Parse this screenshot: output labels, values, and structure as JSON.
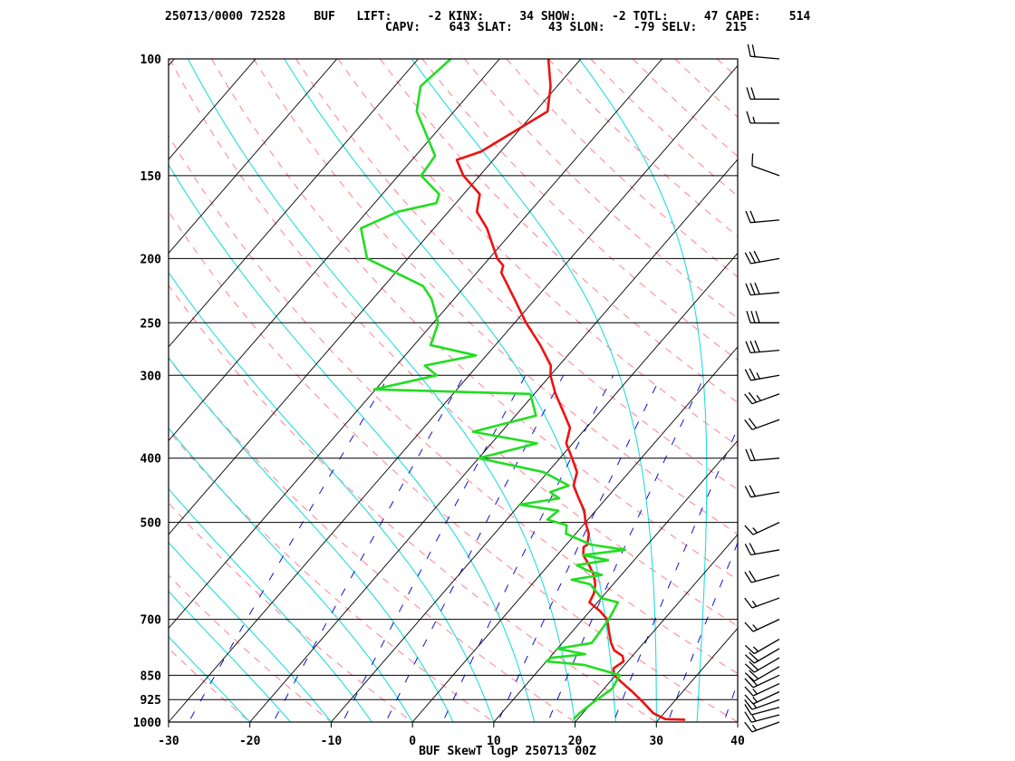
{
  "header": {
    "line1": "250713/0000 72528    BUF   LIFT:     -2 KINX:     34 SHOW:     -2 TOTL:     47 CAPE:    514",
    "line2": "CAPV:    643 SLAT:     43 SLON:    -79 SELV:    215"
  },
  "footer": {
    "title": "BUF SkewT logP 250713 00Z"
  },
  "chart_data": {
    "type": "line",
    "title": "BUF SkewT logP 250713 00Z",
    "xlabel": "",
    "ylabel": "",
    "x_ticks": [
      "-30",
      "-20",
      "-10",
      "0",
      "10",
      "20",
      "30",
      "40"
    ],
    "pressure_levels": [
      {
        "p": 100,
        "label": "100"
      },
      {
        "p": 150,
        "label": "150"
      },
      {
        "p": 200,
        "label": "200"
      },
      {
        "p": 250,
        "label": "250"
      },
      {
        "p": 300,
        "label": "300"
      },
      {
        "p": 400,
        "label": "400"
      },
      {
        "p": 500,
        "label": "500"
      },
      {
        "p": 700,
        "label": "700"
      },
      {
        "p": 850,
        "label": "850"
      },
      {
        "p": 925,
        "label": "925"
      },
      {
        "p": 1000,
        "label": "1000"
      }
    ],
    "xlim": [
      -30,
      40
    ],
    "ylim": [
      1000,
      100
    ],
    "y_scale": "log",
    "colors": {
      "temperature": "#ee1111",
      "dewpoint": "#22dd22",
      "isotherm": "#000000",
      "dry_adiabat": "#ff9aa6",
      "moist_adiabat": "#22dddd",
      "mixing_ratio": "#1111cc",
      "wind_barb": "#000000"
    },
    "series": [
      {
        "key": "temperature",
        "values": [
          {
            "p": 992,
            "t": 33.3
          },
          {
            "p": 990,
            "t": 30.8
          },
          {
            "p": 970,
            "t": 28.7
          },
          {
            "p": 930,
            "t": 26.0
          },
          {
            "p": 900,
            "t": 23.8
          },
          {
            "p": 870,
            "t": 21.4
          },
          {
            "p": 850,
            "t": 19.8
          },
          {
            "p": 830,
            "t": 19.0
          },
          {
            "p": 810,
            "t": 19.5
          },
          {
            "p": 795,
            "t": 18.8
          },
          {
            "p": 780,
            "t": 17.2
          },
          {
            "p": 760,
            "t": 16.0
          },
          {
            "p": 740,
            "t": 15.0
          },
          {
            "p": 720,
            "t": 14.0
          },
          {
            "p": 700,
            "t": 13.0
          },
          {
            "p": 680,
            "t": 11.2
          },
          {
            "p": 660,
            "t": 9.0
          },
          {
            "p": 640,
            "t": 8.6
          },
          {
            "p": 620,
            "t": 7.8
          },
          {
            "p": 600,
            "t": 6.6
          },
          {
            "p": 580,
            "t": 5.0
          },
          {
            "p": 560,
            "t": 3.2
          },
          {
            "p": 545,
            "t": 2.4
          },
          {
            "p": 540,
            "t": 2.6
          },
          {
            "p": 520,
            "t": 1.6
          },
          {
            "p": 500,
            "t": 0.0
          },
          {
            "p": 480,
            "t": -1.4
          },
          {
            "p": 460,
            "t": -3.4
          },
          {
            "p": 440,
            "t": -5.4
          },
          {
            "p": 420,
            "t": -6.4
          },
          {
            "p": 400,
            "t": -8.5
          },
          {
            "p": 380,
            "t": -10.8
          },
          {
            "p": 360,
            "t": -12.0
          },
          {
            "p": 340,
            "t": -14.6
          },
          {
            "p": 320,
            "t": -17.4
          },
          {
            "p": 300,
            "t": -20.0
          },
          {
            "p": 290,
            "t": -21.0
          },
          {
            "p": 270,
            "t": -24.5
          },
          {
            "p": 250,
            "t": -28.6
          },
          {
            "p": 230,
            "t": -32.6
          },
          {
            "p": 210,
            "t": -37.0
          },
          {
            "p": 205,
            "t": -37.5
          },
          {
            "p": 200,
            "t": -39.0
          },
          {
            "p": 180,
            "t": -43.5
          },
          {
            "p": 170,
            "t": -46.5
          },
          {
            "p": 160,
            "t": -48.0
          },
          {
            "p": 150,
            "t": -52.0
          },
          {
            "p": 142,
            "t": -54.5
          },
          {
            "p": 138,
            "t": -52.4
          },
          {
            "p": 120,
            "t": -48.5
          },
          {
            "p": 110,
            "t": -50.8
          },
          {
            "p": 100,
            "t": -54.0
          }
        ]
      },
      {
        "key": "dewpoint",
        "values": [
          {
            "p": 990,
            "t": 19.5
          },
          {
            "p": 970,
            "t": 19.6
          },
          {
            "p": 930,
            "t": 20.2
          },
          {
            "p": 890,
            "t": 21.0
          },
          {
            "p": 850,
            "t": 20.5
          },
          {
            "p": 820,
            "t": 15.0
          },
          {
            "p": 810,
            "t": 10.0
          },
          {
            "p": 800,
            "t": 10.2
          },
          {
            "p": 790,
            "t": 14.0
          },
          {
            "p": 775,
            "t": 10.0
          },
          {
            "p": 760,
            "t": 13.6
          },
          {
            "p": 740,
            "t": 13.5
          },
          {
            "p": 700,
            "t": 13.2
          },
          {
            "p": 660,
            "t": 12.5
          },
          {
            "p": 650,
            "t": 10.0
          },
          {
            "p": 620,
            "t": 7.2
          },
          {
            "p": 610,
            "t": 4.4
          },
          {
            "p": 600,
            "t": 7.6
          },
          {
            "p": 590,
            "t": 5.2
          },
          {
            "p": 580,
            "t": 3.5
          },
          {
            "p": 570,
            "t": 6.8
          },
          {
            "p": 560,
            "t": 3.2
          },
          {
            "p": 550,
            "t": 7.8
          },
          {
            "p": 540,
            "t": 3.0
          },
          {
            "p": 520,
            "t": -1.2
          },
          {
            "p": 505,
            "t": -2.0
          },
          {
            "p": 495,
            "t": -5.0
          },
          {
            "p": 480,
            "t": -4.6
          },
          {
            "p": 470,
            "t": -10.0
          },
          {
            "p": 460,
            "t": -5.8
          },
          {
            "p": 450,
            "t": -7.6
          },
          {
            "p": 440,
            "t": -6.0
          },
          {
            "p": 420,
            "t": -10.5
          },
          {
            "p": 400,
            "t": -20.0
          },
          {
            "p": 380,
            "t": -14.4
          },
          {
            "p": 365,
            "t": -23.5
          },
          {
            "p": 345,
            "t": -17.5
          },
          {
            "p": 320,
            "t": -20.5
          },
          {
            "p": 315,
            "t": -40.2
          },
          {
            "p": 300,
            "t": -34.0
          },
          {
            "p": 290,
            "t": -36.5
          },
          {
            "p": 280,
            "t": -31.3
          },
          {
            "p": 270,
            "t": -38.0
          },
          {
            "p": 265,
            "t": -38.3
          },
          {
            "p": 250,
            "t": -39.4
          },
          {
            "p": 230,
            "t": -42.8
          },
          {
            "p": 220,
            "t": -45.2
          },
          {
            "p": 200,
            "t": -55.0
          },
          {
            "p": 180,
            "t": -59.0
          },
          {
            "p": 170,
            "t": -56.2
          },
          {
            "p": 165,
            "t": -52.4
          },
          {
            "p": 160,
            "t": -53.0
          },
          {
            "p": 150,
            "t": -57.2
          },
          {
            "p": 140,
            "t": -57.6
          },
          {
            "p": 120,
            "t": -64.6
          },
          {
            "p": 110,
            "t": -66.8
          },
          {
            "p": 100,
            "t": -66.0
          }
        ]
      }
    ],
    "wind_barbs": [
      {
        "p": 1000,
        "dir": 250,
        "spd": 15
      },
      {
        "p": 975,
        "dir": 255,
        "spd": 15
      },
      {
        "p": 950,
        "dir": 255,
        "spd": 10
      },
      {
        "p": 925,
        "dir": 250,
        "spd": 15
      },
      {
        "p": 900,
        "dir": 245,
        "spd": 15
      },
      {
        "p": 875,
        "dir": 245,
        "spd": 15
      },
      {
        "p": 850,
        "dir": 245,
        "spd": 20
      },
      {
        "p": 825,
        "dir": 240,
        "spd": 20
      },
      {
        "p": 800,
        "dir": 240,
        "spd": 20
      },
      {
        "p": 775,
        "dir": 240,
        "spd": 20
      },
      {
        "p": 750,
        "dir": 240,
        "spd": 15
      },
      {
        "p": 700,
        "dir": 245,
        "spd": 15
      },
      {
        "p": 650,
        "dir": 250,
        "spd": 15
      },
      {
        "p": 600,
        "dir": 255,
        "spd": 20
      },
      {
        "p": 550,
        "dir": 260,
        "spd": 20
      },
      {
        "p": 500,
        "dir": 245,
        "spd": 15
      },
      {
        "p": 450,
        "dir": 260,
        "spd": 20
      },
      {
        "p": 400,
        "dir": 265,
        "spd": 20
      },
      {
        "p": 350,
        "dir": 250,
        "spd": 20
      },
      {
        "p": 320,
        "dir": 250,
        "spd": 25
      },
      {
        "p": 300,
        "dir": 260,
        "spd": 25
      },
      {
        "p": 275,
        "dir": 265,
        "spd": 30
      },
      {
        "p": 250,
        "dir": 270,
        "spd": 30
      },
      {
        "p": 225,
        "dir": 265,
        "spd": 30
      },
      {
        "p": 200,
        "dir": 260,
        "spd": 30
      },
      {
        "p": 175,
        "dir": 265,
        "spd": 20
      },
      {
        "p": 150,
        "dir": 290,
        "spd": 10
      },
      {
        "p": 125,
        "dir": 270,
        "spd": 15
      },
      {
        "p": 115,
        "dir": 270,
        "spd": 20
      },
      {
        "p": 100,
        "dir": 275,
        "spd": 20
      }
    ]
  }
}
